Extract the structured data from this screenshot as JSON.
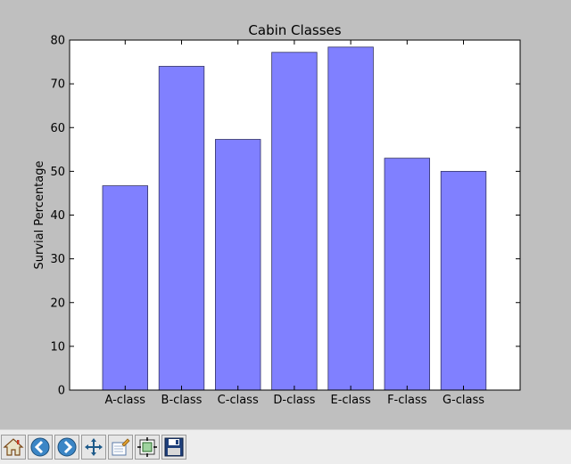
{
  "window": {
    "toolbar": {
      "buttons": [
        {
          "name": "home-icon",
          "label": "Home"
        },
        {
          "name": "back-icon",
          "label": "Back"
        },
        {
          "name": "forward-icon",
          "label": "Forward"
        },
        {
          "name": "pan-icon",
          "label": "Pan"
        },
        {
          "name": "zoom-icon",
          "label": "Zoom"
        },
        {
          "name": "subplots-icon",
          "label": "Configure subplots"
        },
        {
          "name": "save-icon",
          "label": "Save"
        }
      ]
    }
  },
  "chart_data": {
    "type": "bar",
    "title": "Cabin Classes",
    "xlabel": "",
    "ylabel": "Survial Percentage",
    "categories": [
      "A-class",
      "B-class",
      "C-class",
      "D-class",
      "E-class",
      "F-class",
      "G-class"
    ],
    "values": [
      46.7,
      74.0,
      57.3,
      77.2,
      78.4,
      53.0,
      50.0
    ],
    "ylim": [
      0,
      80
    ],
    "yticks": [
      0,
      10,
      20,
      30,
      40,
      50,
      60,
      70,
      80
    ],
    "bar_color": "#8080ff",
    "bar_edge_color": "#333366",
    "grid": false,
    "legend": "none"
  }
}
